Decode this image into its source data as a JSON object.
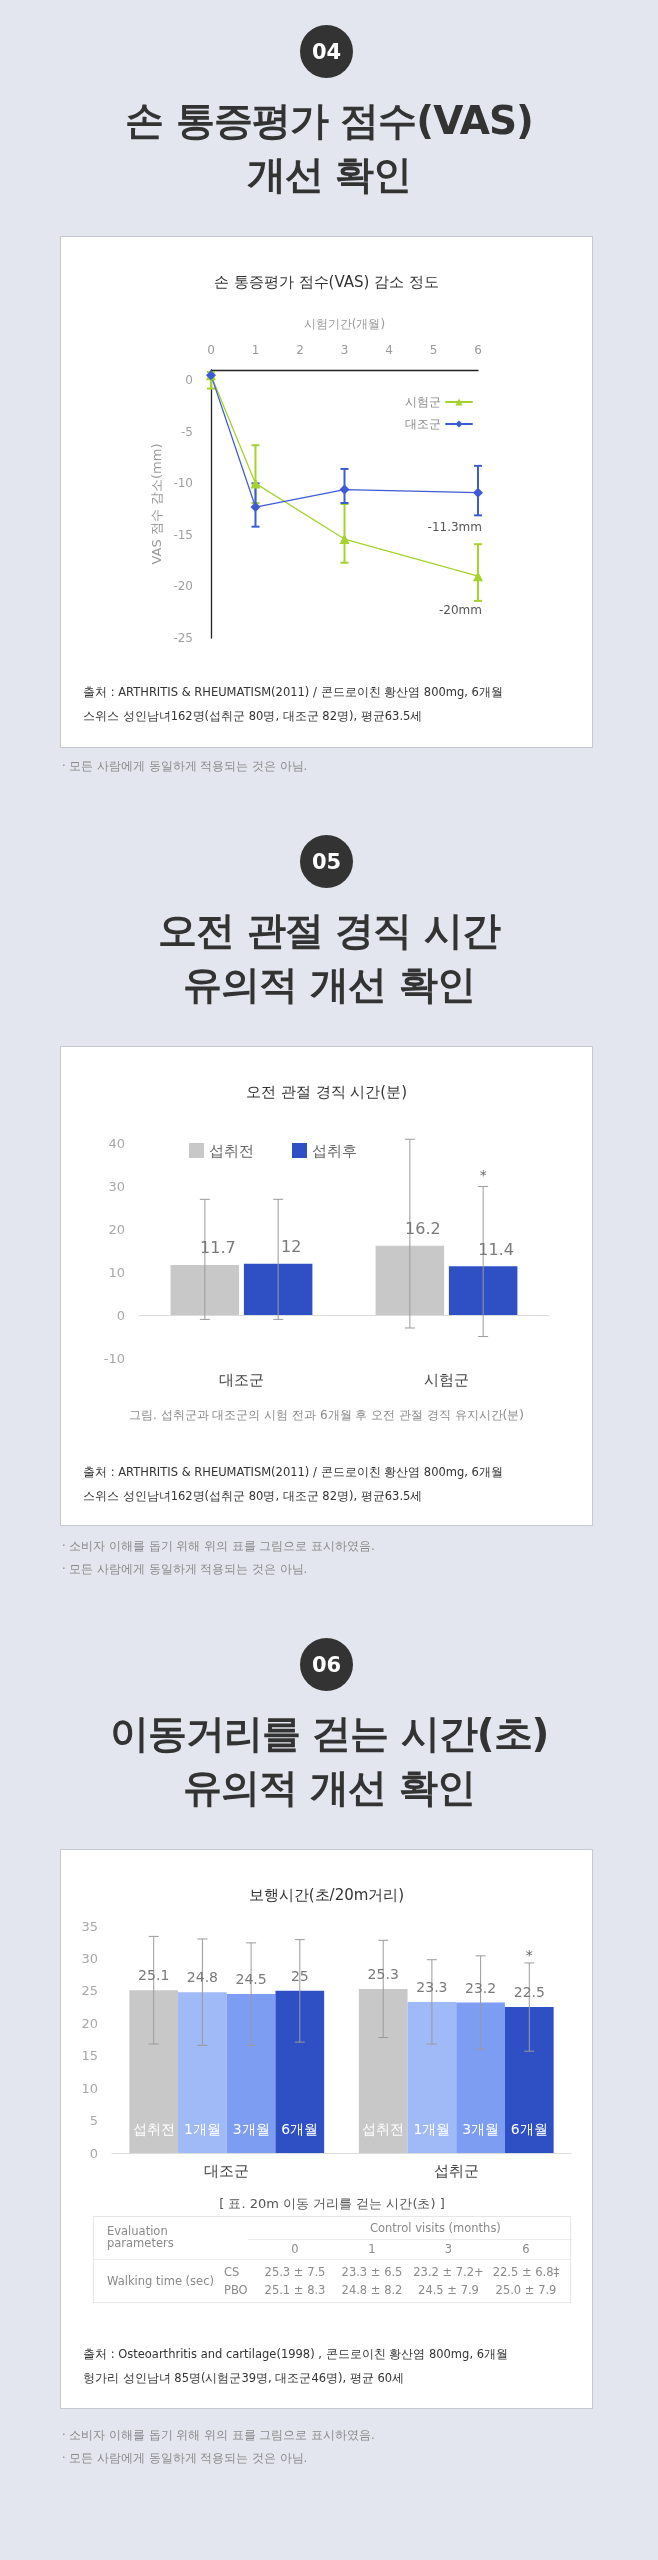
{
  "chart_data": [
    {
      "type": "line",
      "title": "손 통증평가 점수(VAS)\n개선 확인",
      "subtitle": "손 통증평가 점수(VAS) 감소 정도",
      "xlabel": "시험기간(개월)",
      "ylabel": "VAS 점수 감소(mm)",
      "x": [
        0,
        1,
        3,
        6
      ],
      "xlim": [
        0,
        6
      ],
      "xticks": [
        0,
        1,
        2,
        3,
        4,
        5,
        6
      ],
      "ylim": [
        -25,
        1
      ],
      "yticks": [
        0,
        -5,
        -10,
        -15,
        -20,
        -25
      ],
      "series": [
        {
          "name": "시험군",
          "color": "#a5d22c",
          "marker": "triangle",
          "values": [
            0.5,
            -10,
            -15.4,
            -19
          ],
          "errors": [
            [
              -0.8,
              0.8
            ],
            [
              -11.9,
              -6.3
            ],
            [
              -17.7,
              -12
            ],
            [
              -21.4,
              -15.9
            ]
          ]
        },
        {
          "name": "대조군",
          "color": "#3d5bd6",
          "marker": "diamond",
          "values": [
            0.5,
            -12.3,
            -10.6,
            -10.9
          ],
          "errors": [
            null,
            [
              -14.2,
              -10
            ],
            [
              -11.9,
              -8.6
            ],
            [
              -13.1,
              -8.3
            ]
          ]
        }
      ],
      "legend": "top right",
      "annotations": [
        "04",
        {
          "text": "-11.3mm",
          "x": 6,
          "y": -10.9
        },
        {
          "text": "-20mm",
          "x": 6,
          "y": -19
        },
        "출처 : ARTHRITIS & RHEUMATISM(2011) / 콘드로이친 황산염 800mg, 6개월",
        "스위스 성인남녀162명(섭취군 80명, 대조군 82명), 평균63.5세",
        "· 모든 사람에게 동일하게 적용되는 것은 아님."
      ]
    },
    {
      "type": "bar",
      "title": "오전 관절 경직 시간\n유의적 개선 확인",
      "subtitle": "오전 관절 경직 시간(분)",
      "categories": [
        "대조군",
        "시험군"
      ],
      "series": [
        {
          "name": "섭취전",
          "color": "#c8c8c8",
          "values": [
            11.7,
            16.2
          ],
          "errors": [
            [
              -1,
              27
            ],
            [
              -3,
              41
            ]
          ]
        },
        {
          "name": "섭취후",
          "color": "#2f50c4",
          "values": [
            12,
            11.4
          ],
          "errors": [
            [
              -1,
              27
            ],
            [
              -5,
              30
            ]
          ]
        }
      ],
      "ylim": [
        -10,
        42
      ],
      "yticks": [
        -10,
        0,
        10,
        20,
        30,
        40
      ],
      "data_labels": true,
      "legend": "top left",
      "annotations": [
        "05",
        "*",
        "그림. 섭취군과 대조군의 시험 전과 6개월 후 오전 관절 경직 유지시간(분)",
        "출처 : ARTHRITIS & RHEUMATISM(2011) / 콘드로이친 황산염 800mg, 6개월",
        "스위스 성인남녀162명(섭취군 80명, 대조군 82명), 평균63.5세",
        "· 소비자 이해를 돕기 위해 위의 표를 그림으로 표시하였음.",
        "· 모든 사람에게 동일하게 적용되는 것은 아님."
      ]
    },
    {
      "type": "bar",
      "title": "이동거리를 걷는 시간(초)\n유의적 개선 확인",
      "subtitle": "보행시간(초/20m거리)",
      "categories": [
        "대조군",
        "섭취군"
      ],
      "series": [
        {
          "name": "섭취전",
          "color": "#c8c8c8",
          "values": [
            25.1,
            25.3
          ],
          "errors": [
            8.3,
            7.5
          ]
        },
        {
          "name": "1개월",
          "color": "#9fbaf7",
          "values": [
            24.8,
            23.3
          ],
          "errors": [
            8.2,
            6.5
          ]
        },
        {
          "name": "3개월",
          "color": "#7c9df2",
          "values": [
            24.5,
            23.2
          ],
          "errors": [
            7.9,
            7.2
          ]
        },
        {
          "name": "6개월",
          "color": "#2f50c4",
          "values": [
            25,
            22.5
          ],
          "errors": [
            7.9,
            6.8
          ]
        }
      ],
      "ylim": [
        0,
        35
      ],
      "yticks": [
        0,
        5,
        10,
        15,
        20,
        25,
        30,
        35
      ],
      "data_labels": true,
      "legend": false,
      "annotations": [
        "06",
        "*",
        "출처 : Osteoarthritis and cartilage(1998) , 콘드로이친 황산염 800mg, 6개월",
        "헝가리 성인남녀 85명(시험군39명, 대조군46명), 평균 60세",
        "· 소비자 이해를 돕기 위해 위의 표를 그림으로 표시하였음.",
        "· 모든 사람에게 동일하게 적용되는 것은 아님."
      ]
    },
    {
      "type": "other",
      "title": "[ 표. 20m 이동 거리를 걷는 시간(초) ]",
      "annotations": [
        "Evaluation parameters",
        "Control visits (months)",
        "0",
        "1",
        "3",
        "6",
        "Walking time (sec)",
        "CS",
        "25.3 ± 7.5",
        "23.3 ± 6.5",
        "23.2 ± 7.2+",
        "22.5 ± 6.8‡",
        "PBO",
        "25.1 ± 8.3",
        "24.8 ± 8.2",
        "24.5 ± 7.9",
        "25.0 ± 7.9"
      ]
    }
  ]
}
